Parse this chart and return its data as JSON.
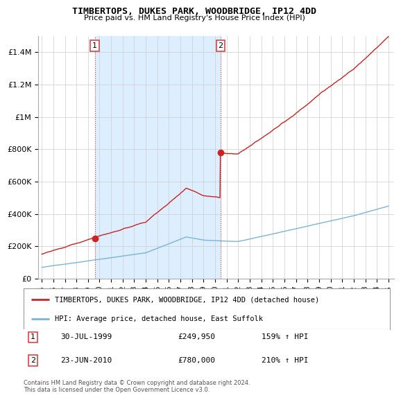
{
  "title": "TIMBERTOPS, DUKES PARK, WOODBRIDGE, IP12 4DD",
  "subtitle": "Price paid vs. HM Land Registry's House Price Index (HPI)",
  "legend_line1": "TIMBERTOPS, DUKES PARK, WOODBRIDGE, IP12 4DD (detached house)",
  "legend_line2": "HPI: Average price, detached house, East Suffolk",
  "annotation1_date": "30-JUL-1999",
  "annotation1_price": "£249,950",
  "annotation1_hpi": "159% ↑ HPI",
  "annotation2_date": "23-JUN-2010",
  "annotation2_price": "£780,000",
  "annotation2_hpi": "210% ↑ HPI",
  "footer": "Contains HM Land Registry data © Crown copyright and database right 2024.\nThis data is licensed under the Open Government Licence v3.0.",
  "ylim": [
    0,
    1500000
  ],
  "yticks": [
    0,
    200000,
    400000,
    600000,
    800000,
    1000000,
    1200000,
    1400000
  ],
  "ytick_labels": [
    "£0",
    "£200K",
    "£400K",
    "£600K",
    "£800K",
    "£1M",
    "£1.2M",
    "£1.4M"
  ],
  "sale1_year": 1999.58,
  "sale1_price": 249950,
  "sale2_year": 2010.47,
  "sale2_price": 780000,
  "hpi_color": "#7ab4d8",
  "house_color": "#cc2222",
  "shade_color": "#ddeeff",
  "bg_color": "#ffffff",
  "grid_color": "#cccccc",
  "vline_color": "#dd4444"
}
